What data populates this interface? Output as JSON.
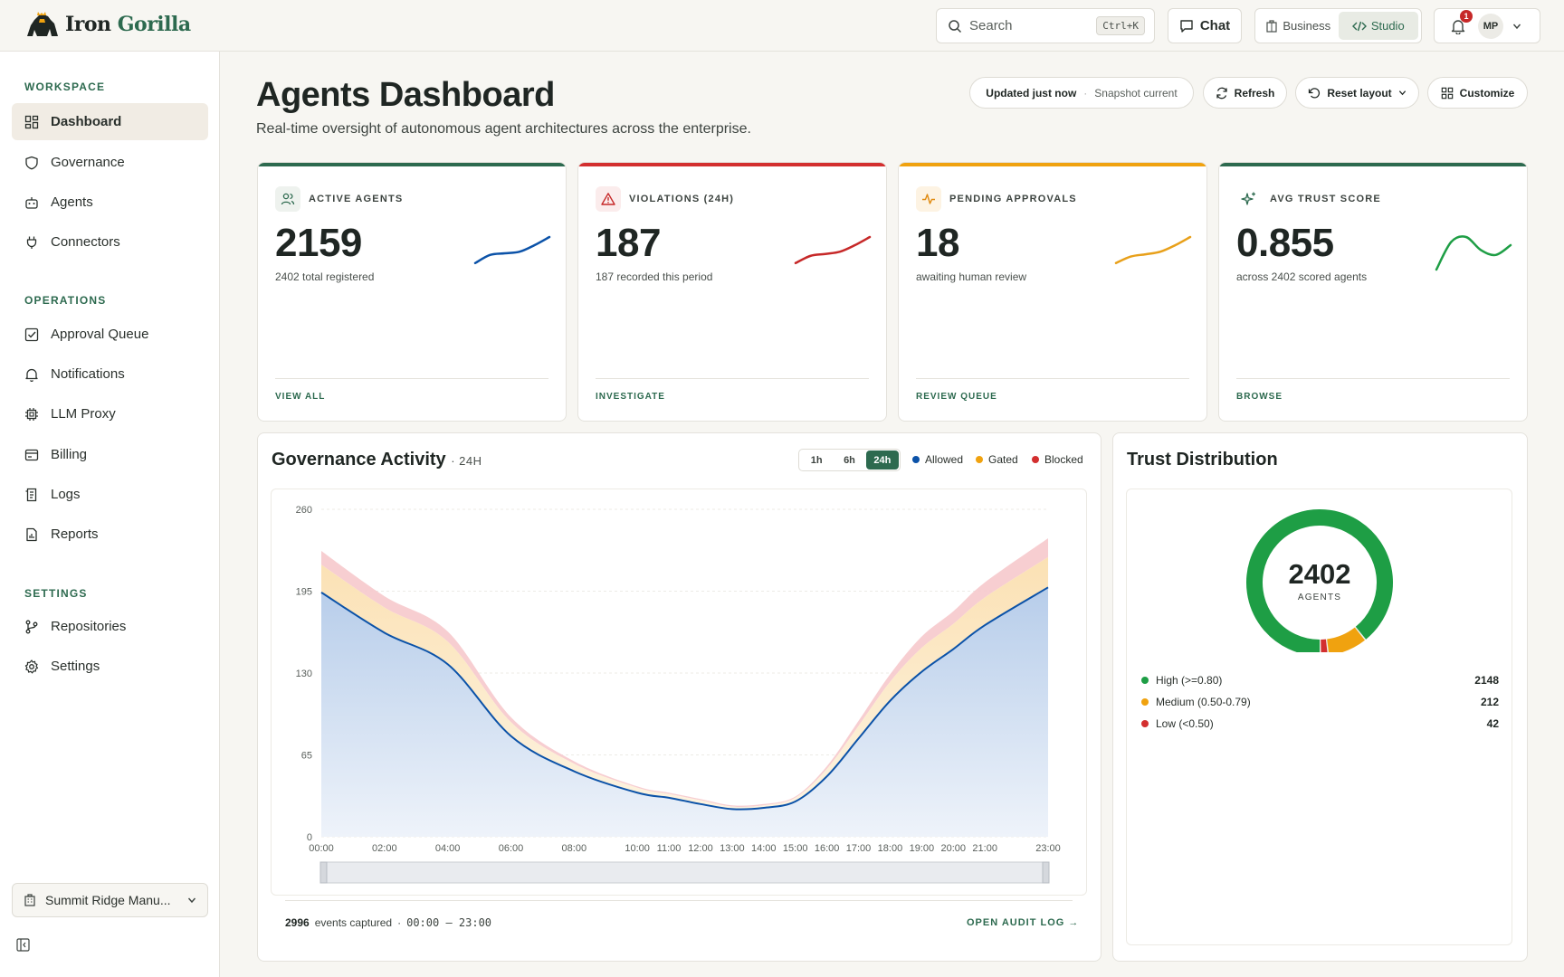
{
  "brand": {
    "name_part1": "Iron",
    "name_part2": "Gorilla"
  },
  "topbar": {
    "search_placeholder": "Search",
    "search_shortcut": "Ctrl+K",
    "chat_label": "Chat",
    "modes": [
      {
        "label": "Business",
        "icon": "building-icon",
        "active": false
      },
      {
        "label": "Studio",
        "icon": "code-icon",
        "active": true
      }
    ],
    "notification_count": "1",
    "user_initials": "MP"
  },
  "sidebar": {
    "sections": [
      {
        "title": "WORKSPACE",
        "items": [
          {
            "label": "Dashboard",
            "icon": "grid-icon",
            "active": true
          },
          {
            "label": "Governance",
            "icon": "shield-icon"
          },
          {
            "label": "Agents",
            "icon": "robot-icon"
          },
          {
            "label": "Connectors",
            "icon": "plug-icon"
          }
        ]
      },
      {
        "title": "OPERATIONS",
        "items": [
          {
            "label": "Approval Queue",
            "icon": "checkbox-icon"
          },
          {
            "label": "Notifications",
            "icon": "bell-icon"
          },
          {
            "label": "LLM Proxy",
            "icon": "chip-icon"
          },
          {
            "label": "Billing",
            "icon": "billing-icon"
          },
          {
            "label": "Logs",
            "icon": "logs-icon"
          },
          {
            "label": "Reports",
            "icon": "report-icon"
          }
        ]
      },
      {
        "title": "SETTINGS",
        "items": [
          {
            "label": "Repositories",
            "icon": "branch-icon"
          },
          {
            "label": "Settings",
            "icon": "gear-icon"
          }
        ]
      }
    ],
    "org_name": "Summit Ridge Manu..."
  },
  "header": {
    "title": "Agents Dashboard",
    "subtitle": "Real-time oversight of autonomous agent architectures across the enterprise.",
    "status_updated": "Updated just now",
    "status_snapshot": "Snapshot current",
    "refresh_label": "Refresh",
    "reset_label": "Reset layout",
    "customize_label": "Customize"
  },
  "kpis": [
    {
      "label": "ACTIVE AGENTS",
      "value": "2159",
      "sub": "2402 total registered",
      "link": "VIEW ALL",
      "color": "#0b52a8",
      "accent": "#2d6a4f",
      "icon": "users-icon",
      "trend": [
        0.2,
        0.45,
        0.5,
        0.55,
        0.75,
        1.0
      ]
    },
    {
      "label": "VIOLATIONS (24H)",
      "value": "187",
      "sub": "187 recorded this period",
      "link": "INVESTIGATE",
      "color": "#c62828",
      "accent": "#d32f2f",
      "icon": "alert-icon",
      "trend": [
        0.2,
        0.42,
        0.48,
        0.55,
        0.75,
        1.0
      ]
    },
    {
      "label": "PENDING APPROVALS",
      "value": "18",
      "sub": "awaiting human review",
      "link": "REVIEW QUEUE",
      "color": "#e8a01a",
      "accent": "#f0a20f",
      "icon": "pulse-icon",
      "trend": [
        0.2,
        0.4,
        0.47,
        0.55,
        0.75,
        1.0
      ]
    },
    {
      "label": "AVG TRUST SCORE",
      "value": "0.855",
      "sub": "across 2402 scored agents",
      "link": "BROWSE",
      "color": "#1e9e45",
      "accent": "#2d6a4f",
      "icon": "sparkle-icon",
      "trend": [
        0.0,
        0.85,
        1.0,
        0.6,
        0.45,
        0.75
      ]
    }
  ],
  "activity": {
    "title": "Governance Activity",
    "range_label": "· 24H",
    "ranges": [
      "1h",
      "6h",
      "24h"
    ],
    "active_range": "24h",
    "legend": [
      {
        "name": "Allowed",
        "color": "#0b52a8"
      },
      {
        "name": "Gated",
        "color": "#f0a20f"
      },
      {
        "name": "Blocked",
        "color": "#d32f2f"
      }
    ],
    "events_count": "2996",
    "events_label": "events captured",
    "time_range": "00:00 — 23:00",
    "audit_link": "OPEN AUDIT LOG →"
  },
  "chart_data": {
    "type": "area",
    "stacked": true,
    "x": [
      "00:00",
      "02:00",
      "04:00",
      "06:00",
      "08:00",
      "10:00",
      "11:00",
      "12:00",
      "13:00",
      "14:00",
      "15:00",
      "16:00",
      "17:00",
      "18:00",
      "19:00",
      "20:00",
      "21:00",
      "23:00"
    ],
    "x_hours": [
      0,
      2,
      4,
      6,
      8,
      10,
      11,
      12,
      13,
      14,
      15,
      16,
      17,
      18,
      19,
      20,
      21,
      23
    ],
    "series": [
      {
        "name": "Allowed",
        "values": [
          194,
          162,
          137,
          80,
          52,
          35,
          31,
          26,
          22,
          23,
          28,
          48,
          78,
          108,
          131,
          149,
          168,
          198
        ]
      },
      {
        "name": "Gated",
        "values": [
          22,
          20,
          18,
          11,
          6,
          4,
          3,
          3,
          2,
          2,
          3,
          6,
          10,
          15,
          19,
          20,
          22,
          24
        ]
      },
      {
        "name": "Blocked",
        "values": [
          11,
          9,
          8,
          4,
          2,
          1,
          1,
          1,
          1,
          1,
          1,
          2,
          4,
          6,
          9,
          10,
          12,
          15
        ]
      }
    ],
    "ylim": [
      0,
      260
    ],
    "yticks": [
      0,
      65,
      130,
      195,
      260
    ],
    "grid": true
  },
  "trust": {
    "title": "Trust Distribution",
    "total": "2402",
    "total_label": "AGENTS",
    "buckets": [
      {
        "name": "High (>=0.80)",
        "count": "2148",
        "value": 2148,
        "color": "#1e9e45"
      },
      {
        "name": "Medium (0.50-0.79)",
        "count": "212",
        "value": 212,
        "color": "#f0a20f"
      },
      {
        "name": "Low (<0.50)",
        "count": "42",
        "value": 42,
        "color": "#d32f2f"
      }
    ]
  }
}
